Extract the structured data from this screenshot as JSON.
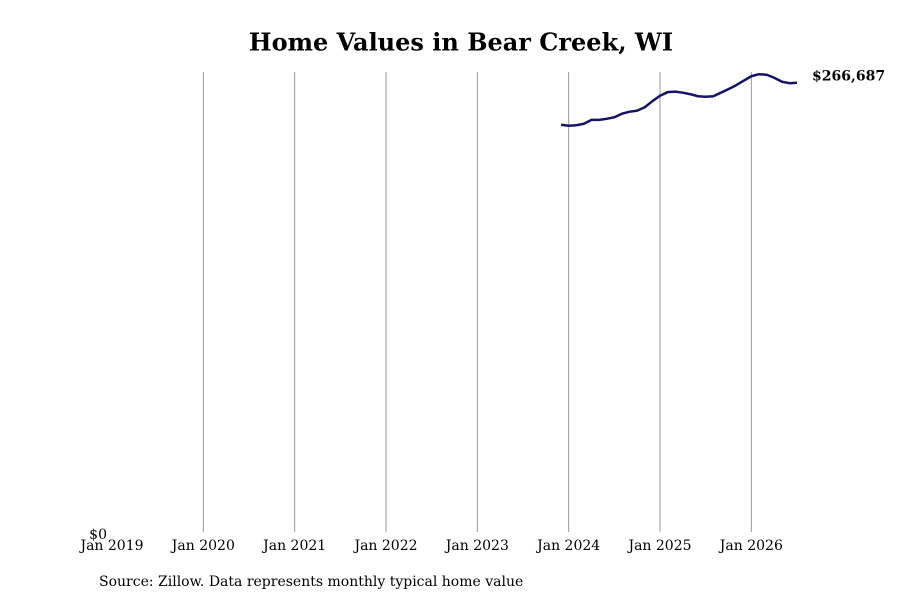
{
  "chart_data": {
    "type": "line",
    "title": "Home Values in Bear Creek, WI",
    "source": "Source: Zillow. Data represents monthly typical home value",
    "x": [
      "2023-12",
      "2024-01",
      "2024-02",
      "2024-03",
      "2024-04",
      "2024-05",
      "2024-06",
      "2024-07",
      "2024-08",
      "2024-09",
      "2024-10",
      "2024-11",
      "2024-12",
      "2025-01",
      "2025-02",
      "2025-03",
      "2025-04",
      "2025-05",
      "2025-06",
      "2025-07",
      "2025-08",
      "2025-09",
      "2025-10",
      "2025-11",
      "2025-12",
      "2026-01",
      "2026-02",
      "2026-03",
      "2026-04",
      "2026-05",
      "2026-06",
      "2026-07"
    ],
    "series": [
      {
        "name": "Bear Creek, WI",
        "color": "#13136b",
        "values": [
          241900,
          241300,
          241600,
          242500,
          244800,
          244800,
          245400,
          246300,
          248400,
          249600,
          250200,
          252200,
          255800,
          259000,
          261100,
          261400,
          260800,
          259900,
          258700,
          258400,
          258700,
          260800,
          262900,
          265200,
          267900,
          270500,
          271700,
          271400,
          269600,
          267300,
          266400,
          266687
        ],
        "end_label": {
          "value": 266687,
          "label": "$266,687"
        }
      }
    ],
    "xlim": [
      "2019-01",
      "2026-07"
    ],
    "xticks": [
      {
        "value": "2019-01",
        "label": "Jan 2019"
      },
      {
        "value": "2020-01",
        "label": "Jan 2020"
      },
      {
        "value": "2021-01",
        "label": "Jan 2021"
      },
      {
        "value": "2022-01",
        "label": "Jan 2022"
      },
      {
        "value": "2023-01",
        "label": "Jan 2023"
      },
      {
        "value": "2024-01",
        "label": "Jan 2024"
      },
      {
        "value": "2025-01",
        "label": "Jan 2025"
      },
      {
        "value": "2026-01",
        "label": "Jan 2026"
      }
    ],
    "ylim": [
      0,
      273000
    ],
    "yticks": [
      {
        "value": 0,
        "label": "$0"
      }
    ],
    "grid": true
  }
}
